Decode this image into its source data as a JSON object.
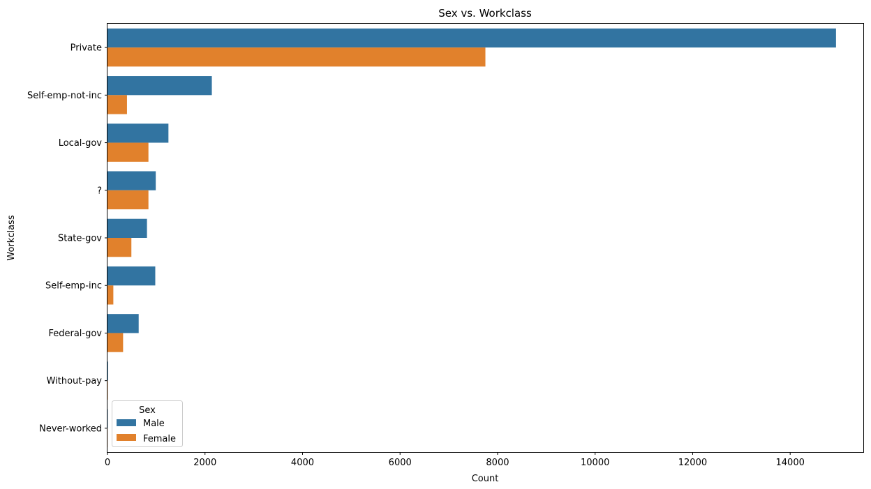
{
  "chart_data": {
    "type": "bar",
    "orientation": "horizontal",
    "title": "Sex vs. Workclass",
    "xlabel": "Count",
    "ylabel": "Workclass",
    "xlim": [
      0,
      15500
    ],
    "xticks": [
      0,
      2000,
      4000,
      6000,
      8000,
      10000,
      12000,
      14000
    ],
    "categories": [
      "Private",
      "Self-emp-not-inc",
      "Local-gov",
      "?",
      "State-gov",
      "Self-emp-inc",
      "Federal-gov",
      "Without-pay",
      "Never-worked"
    ],
    "series": [
      {
        "name": "Male",
        "color": "#3274a1",
        "values": [
          14940,
          2140,
          1250,
          990,
          810,
          980,
          640,
          10,
          5
        ]
      },
      {
        "name": "Female",
        "color": "#e1812c",
        "values": [
          7750,
          400,
          840,
          840,
          490,
          120,
          320,
          5,
          2
        ]
      }
    ],
    "legend": {
      "title": "Sex",
      "position": "lower-left"
    },
    "grid": false
  }
}
